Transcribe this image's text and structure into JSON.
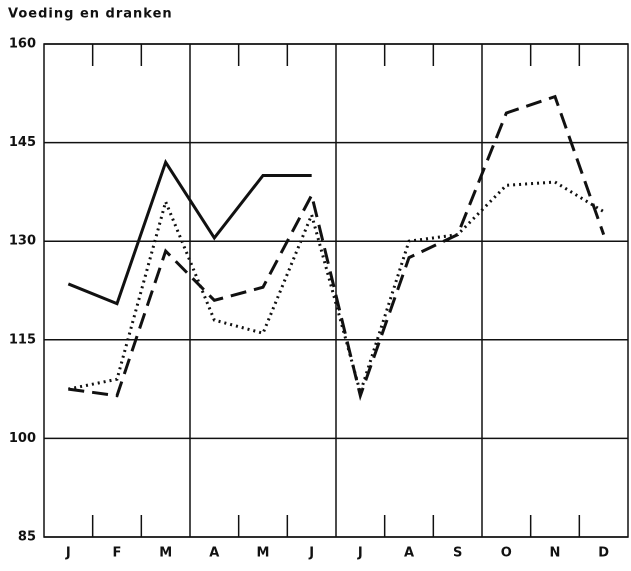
{
  "chart_data": {
    "type": "line",
    "title": "Voeding en dranken",
    "categories": [
      "J",
      "F",
      "M",
      "A",
      "M",
      "J",
      "J",
      "A",
      "S",
      "O",
      "N",
      "D"
    ],
    "series": [
      {
        "color": "#111111",
        "style": "solid",
        "values": [
          123.5,
          120.5,
          142,
          130.5,
          140,
          140,
          null,
          null,
          null,
          null,
          null,
          null
        ]
      },
      {
        "color": "#111111",
        "style": "dashed",
        "values": [
          107.5,
          106.5,
          128.5,
          121,
          123,
          137,
          106.5,
          127.5,
          131,
          149.5,
          152,
          131
        ]
      },
      {
        "color": "#111111",
        "style": "dotted",
        "values": [
          107.5,
          109,
          136,
          118,
          116,
          134,
          107,
          130,
          131,
          138.5,
          139,
          134.5
        ]
      }
    ],
    "ylim": [
      85,
      160
    ],
    "yticks": [
      85,
      100,
      115,
      130,
      145,
      160
    ],
    "grid": true
  }
}
